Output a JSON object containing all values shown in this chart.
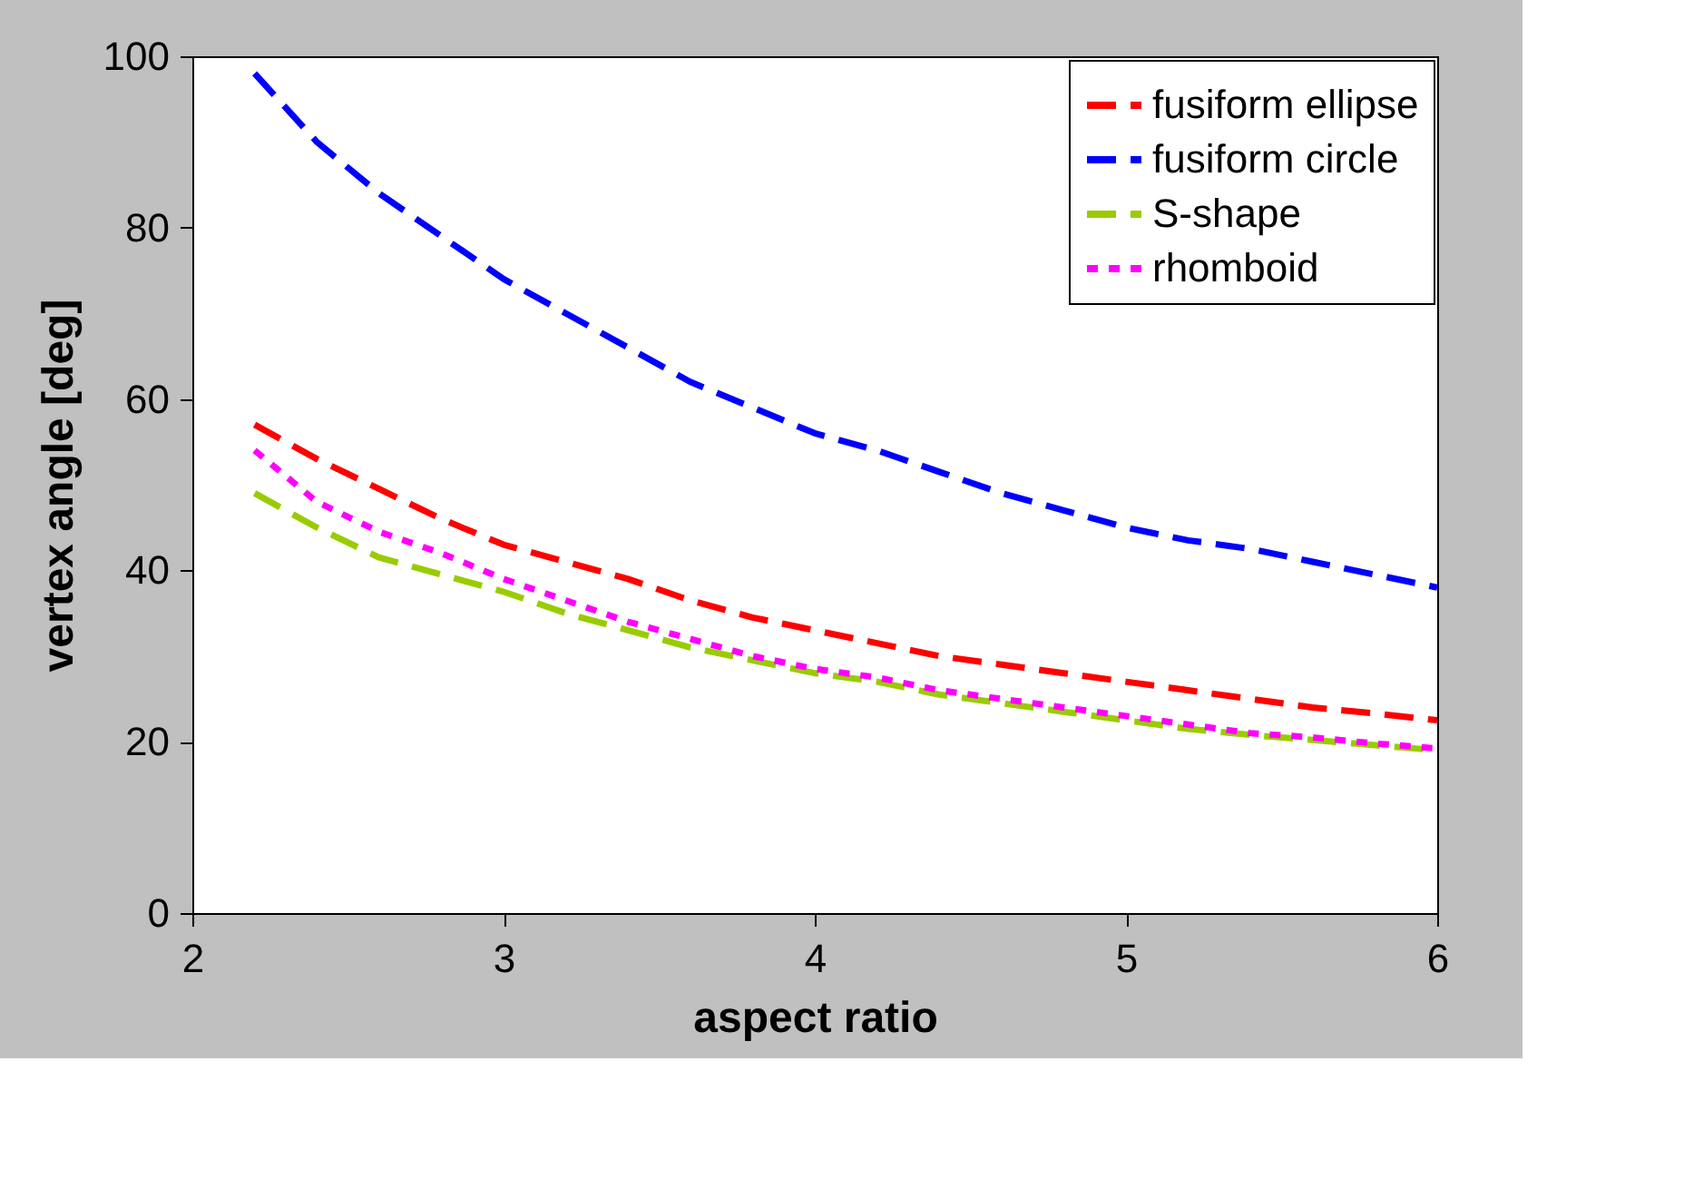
{
  "chart_data": {
    "type": "line",
    "xlabel": "aspect ratio",
    "ylabel": "vertex angle [deg]",
    "x": [
      2.2,
      2.4,
      2.6,
      2.8,
      3.0,
      3.2,
      3.4,
      3.6,
      3.8,
      4.0,
      4.2,
      4.4,
      4.6,
      4.8,
      5.0,
      5.2,
      5.4,
      5.6,
      5.8,
      6.0
    ],
    "xlim": [
      2,
      6
    ],
    "xticks": [
      2,
      3,
      4,
      5,
      6
    ],
    "ylim": [
      0,
      100
    ],
    "yticks": [
      0,
      20,
      40,
      60,
      80,
      100
    ],
    "grid": false,
    "legend": "top right",
    "marker": "none",
    "series": [
      {
        "name": "fusiform ellipse",
        "color": "#ff0000",
        "line_style": "dashed",
        "values": [
          57,
          53,
          49.5,
          46,
          43,
          41,
          39,
          36.5,
          34.5,
          33,
          31.5,
          30,
          29,
          28,
          27,
          26,
          25,
          24,
          23.3,
          22.5
        ]
      },
      {
        "name": "fusiform circle",
        "color": "#0000ff",
        "line_style": "dashed",
        "values": [
          98,
          90,
          84,
          79,
          74,
          70,
          66,
          62,
          59,
          56,
          54,
          51.5,
          49,
          47,
          45,
          43.5,
          42.5,
          41,
          39.5,
          38
        ]
      },
      {
        "name": "S-shape",
        "color": "#99cc00",
        "line_style": "dashed",
        "values": [
          49,
          45,
          41.5,
          39.5,
          37.5,
          35,
          33,
          31,
          29.5,
          28,
          27,
          25.5,
          24.5,
          23.5,
          22.5,
          21.5,
          20.8,
          20.2,
          19.6,
          19
        ]
      },
      {
        "name": "rhomboid",
        "color": "#ff00ff",
        "line_style": "dotted",
        "values": [
          54,
          48,
          44.5,
          42,
          39,
          36.5,
          34,
          32,
          30,
          28.5,
          27.5,
          26,
          25,
          24,
          23,
          22,
          21,
          20.5,
          19.8,
          19.2
        ]
      }
    ]
  }
}
